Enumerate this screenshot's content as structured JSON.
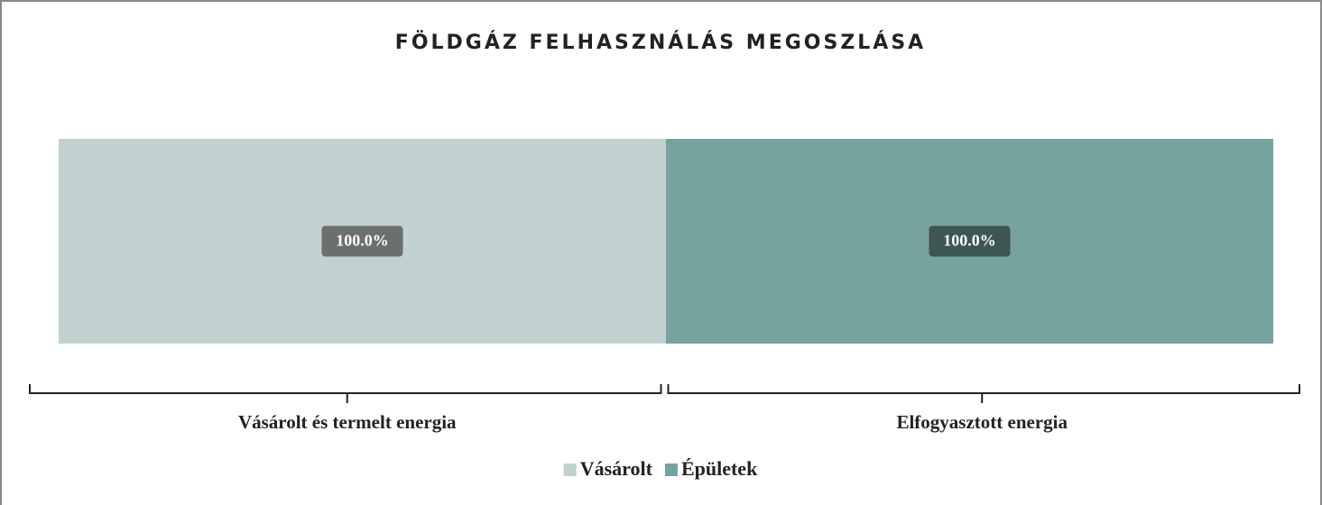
{
  "chart_data": {
    "type": "bar",
    "stacked": true,
    "title": "FÖLDGÁZ FELHASZNÁLÁS MEGOSZLÁSA",
    "categories": [
      "Vásárolt és termelt energia",
      "Elfogyasztott energia"
    ],
    "series": [
      {
        "name": "Vásárolt",
        "color": "#c0d1cf",
        "values": [
          100,
          null
        ],
        "value_labels": [
          "100.0%",
          null
        ]
      },
      {
        "name": "Épületek",
        "color": "#76a29f",
        "values": [
          null,
          100
        ],
        "value_labels": [
          null,
          "100.0%"
        ]
      }
    ],
    "ylim": [
      0,
      100
    ],
    "legend": "bottom"
  }
}
